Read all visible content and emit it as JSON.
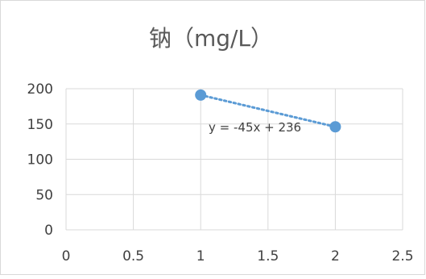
{
  "chart_data": {
    "type": "scatter",
    "title": "钠（mg/L）",
    "x_ticks": [
      "0",
      "0.5",
      "1",
      "1.5",
      "2",
      "2.5"
    ],
    "y_ticks": [
      "0",
      "50",
      "100",
      "150",
      "200"
    ],
    "xlim": [
      0,
      2.5
    ],
    "ylim": [
      0,
      200
    ],
    "grid": true,
    "series": [
      {
        "points": [
          {
            "x": 1,
            "y": 191
          },
          {
            "x": 2,
            "y": 146
          }
        ]
      }
    ],
    "trendline": {
      "type": "linear",
      "slope": -45,
      "intercept": 236,
      "equation_label": "y = -45x + 236"
    },
    "colors": {
      "marker": "#5b9bd5",
      "trendline": "#5b9bd5",
      "grid": "#d9d9d9",
      "text": "#404040",
      "border": "#d9d9d9"
    }
  }
}
